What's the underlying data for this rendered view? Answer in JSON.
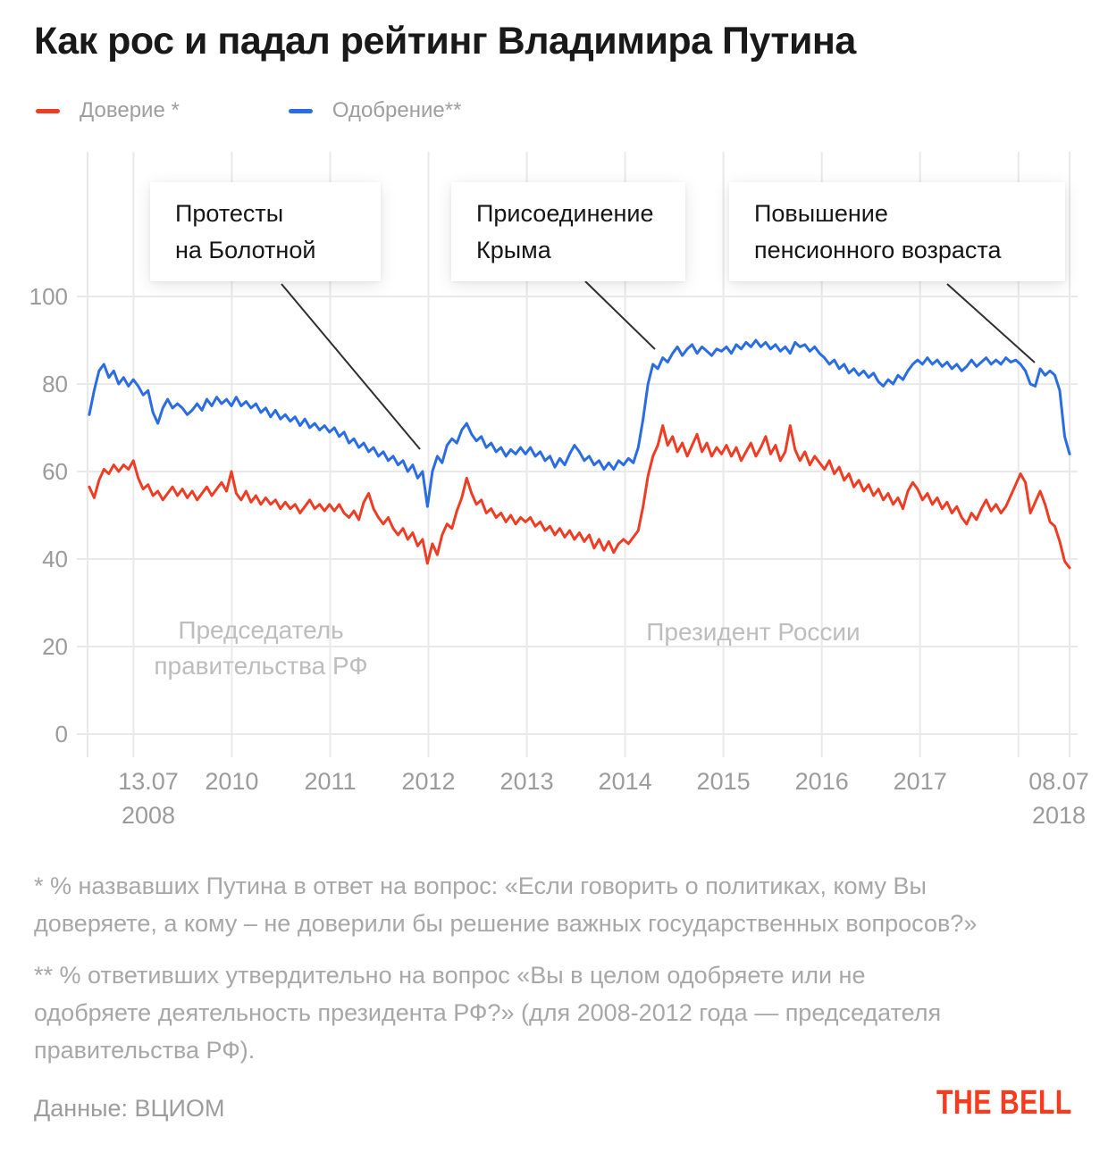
{
  "title": "Как рос и падал рейтинг Владимира Путина",
  "legend": [
    {
      "label": "Доверие *",
      "color": "#ee3d25"
    },
    {
      "label": "Одобрение**",
      "color": "#2a6ce2"
    }
  ],
  "annotations": [
    {
      "text": "Протесты\nна Болотной",
      "line": [
        315,
        318,
        470,
        503
      ]
    },
    {
      "text": "Присоединение\nКрыма",
      "line": [
        655,
        315,
        733,
        391
      ]
    },
    {
      "text": "Повышение\nпенсионного возраста",
      "line": [
        1060,
        318,
        1158,
        406
      ]
    }
  ],
  "period_labels": [
    {
      "text": "Председатель\nправительства РФ"
    },
    {
      "text": "Президент России"
    }
  ],
  "footnotes": [
    "* % назвавших Путина в ответ на вопрос: «Если говорить о политиках, кому Вы\nдоверяете, а кому – не доверили бы решение важных государственных вопросов?»",
    "** % ответивших утвердительно на вопрос «Вы в целом одобряете или не\nодобряете деятельность президента РФ?» (для 2008-2012 года — председателя\nправительства РФ)."
  ],
  "source": "Данные: ВЦИОМ",
  "logo": "THE BELL",
  "colors": {
    "trust_line": "#ee3d25",
    "approval_line": "#2a6ce2",
    "grid": "#e9e9e9",
    "callout": "#2f2f2f",
    "axis_text": "#9b9b9b",
    "logo_red": "#fb3a1d"
  },
  "chart_data": {
    "type": "line",
    "title": "Как рос и падал рейтинг Владимира Путина",
    "xlabel": "",
    "ylabel": "",
    "x_range": [
      2008.533,
      2018.52
    ],
    "ylim": [
      0,
      100
    ],
    "grid": true,
    "legend_position": "top-left",
    "y_ticks": [
      0,
      20,
      40,
      60,
      80,
      100
    ],
    "x_gridline_years": [
      2009,
      2010,
      2011,
      2012,
      2013,
      2014,
      2015,
      2016,
      2017,
      2018
    ],
    "x_ticks": [
      {
        "t": 2008.533,
        "label": "13.07\n2008"
      },
      {
        "t": 2010,
        "label": "2010"
      },
      {
        "t": 2011,
        "label": "2011"
      },
      {
        "t": 2012,
        "label": "2012"
      },
      {
        "t": 2013,
        "label": "2013"
      },
      {
        "t": 2014,
        "label": "2014"
      },
      {
        "t": 2015,
        "label": "2015"
      },
      {
        "t": 2016,
        "label": "2016"
      },
      {
        "t": 2017,
        "label": "2017"
      },
      {
        "t": 2018.52,
        "label": "08.07\n2018"
      }
    ],
    "series": [
      {
        "name": "Доверие",
        "color": "#ee3d25",
        "x_start": 2008.55,
        "x_end": 2018.52,
        "values": [
          56.5,
          54,
          58,
          60.5,
          59.5,
          61.5,
          60,
          61.5,
          60.5,
          62.5,
          58.5,
          56,
          57,
          54.5,
          55.5,
          53.5,
          55,
          56.5,
          54.5,
          56,
          54,
          55.5,
          53.5,
          55,
          56.5,
          54.5,
          56,
          57.5,
          55.5,
          60,
          55,
          53.5,
          55.5,
          53,
          54.5,
          52.5,
          54,
          52.5,
          53.5,
          51.5,
          53,
          51.5,
          52.5,
          50.5,
          52,
          53.5,
          51.5,
          52.5,
          51,
          52.5,
          51,
          52.5,
          50.5,
          49.5,
          51,
          49,
          53,
          55,
          51.5,
          49.5,
          48,
          49.5,
          47,
          45.5,
          47,
          44.5,
          46,
          43,
          44.5,
          39,
          43.5,
          41,
          45.5,
          48,
          47,
          51,
          54,
          58.5,
          55,
          52.5,
          53.5,
          50.5,
          51.5,
          49.5,
          50.5,
          48.5,
          50,
          48,
          49.5,
          48.5,
          49.5,
          47.5,
          48.5,
          46.5,
          47.5,
          45.5,
          47,
          45,
          46.5,
          44.5,
          46,
          44,
          45.5,
          42.5,
          44.5,
          42,
          44,
          41.5,
          43.5,
          44.5,
          43.5,
          45,
          46.5,
          52,
          59,
          63.5,
          66,
          70.5,
          66,
          68,
          64.5,
          66.5,
          63.5,
          66,
          68.5,
          64.5,
          66.5,
          63.5,
          65.5,
          64,
          66,
          63.5,
          65.5,
          62.5,
          64.5,
          66.5,
          63.5,
          65.5,
          68,
          64,
          66,
          62.5,
          64.5,
          70.5,
          65,
          62.5,
          64.5,
          61.5,
          63.5,
          62,
          60.5,
          62.5,
          59.5,
          61,
          58,
          59.5,
          56.5,
          58,
          55.5,
          57,
          54.5,
          56,
          53.5,
          55,
          52.5,
          54,
          51.5,
          55.5,
          57.5,
          56,
          53.5,
          55,
          52.5,
          54,
          51.5,
          53,
          50.5,
          52,
          49.5,
          48,
          50.5,
          49,
          51.5,
          53.5,
          51,
          52.5,
          50.5,
          52,
          54.5,
          57,
          59.5,
          57.5,
          50.5,
          53,
          55.5,
          52.5,
          48.5,
          47.5,
          44,
          39.5,
          38
        ]
      },
      {
        "name": "Одобрение",
        "color": "#2a6ce2",
        "x_start": 2008.55,
        "x_end": 2018.52,
        "values": [
          73,
          78.5,
          83,
          84.5,
          81.5,
          83,
          80,
          81.5,
          79.5,
          81,
          79.5,
          77.5,
          78.5,
          73.5,
          71,
          74.5,
          76.5,
          74.5,
          75.5,
          74.5,
          73,
          74,
          75.5,
          74,
          76.5,
          75,
          77,
          75.5,
          76.5,
          75,
          77,
          75,
          76,
          74.5,
          75.5,
          73.5,
          74.5,
          72.5,
          74,
          72,
          73,
          71.5,
          72.5,
          70.5,
          72,
          70,
          71,
          69.5,
          70.5,
          69,
          70,
          68,
          69,
          66.5,
          67.5,
          65.5,
          66.5,
          64.5,
          65.5,
          63.5,
          64.5,
          62.5,
          63.5,
          61.5,
          62.5,
          60,
          61.5,
          58.5,
          60,
          52,
          60,
          63.5,
          62,
          66,
          67.5,
          66.5,
          69.5,
          71,
          68.5,
          67,
          68,
          65.5,
          66.5,
          64.5,
          65.5,
          63.5,
          65,
          64,
          65.5,
          64,
          65.5,
          63.5,
          64.5,
          62.5,
          63.5,
          61,
          63,
          61.5,
          64,
          66,
          64.5,
          62.5,
          63.5,
          61.5,
          62.5,
          60.5,
          62,
          60.5,
          62.5,
          61.5,
          63,
          62,
          65.5,
          72,
          80,
          84.5,
          83.5,
          86,
          85,
          87,
          88.5,
          86.5,
          88,
          89,
          87,
          88.5,
          87.5,
          86.5,
          88,
          87.5,
          88.5,
          87,
          89,
          88,
          89.5,
          88.5,
          90,
          88.5,
          89.5,
          88,
          89,
          87.5,
          88.5,
          87,
          89.5,
          88.5,
          89,
          87.5,
          88.5,
          87,
          86,
          84.5,
          85.5,
          83.5,
          84.5,
          82.5,
          83.5,
          82,
          83,
          81.5,
          82.5,
          80.5,
          79.5,
          81,
          80,
          82,
          81,
          83,
          84.5,
          85.5,
          84.5,
          86,
          84.5,
          85.5,
          84,
          85,
          83.5,
          84.5,
          83,
          84,
          85.5,
          84,
          85,
          86,
          84.5,
          85.5,
          84.5,
          86,
          85,
          85.5,
          84.5,
          83,
          80,
          79.5,
          83.5,
          82,
          83,
          82,
          78.5,
          68,
          64
        ]
      }
    ]
  }
}
